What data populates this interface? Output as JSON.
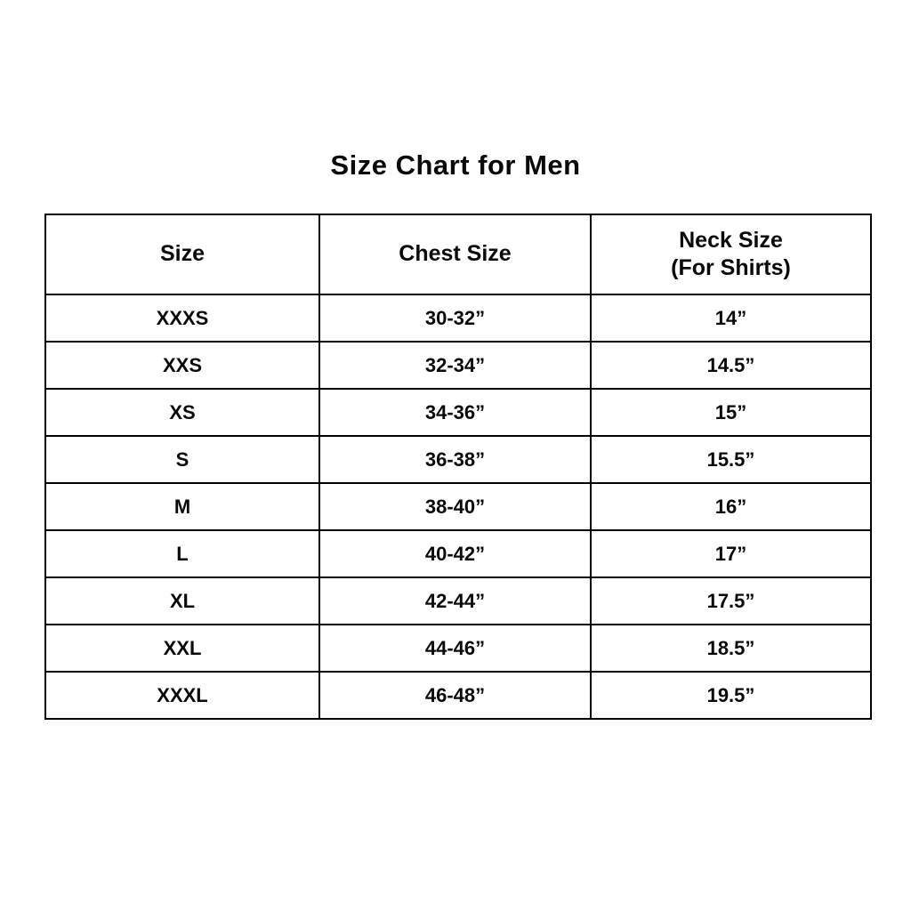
{
  "title": "Size Chart for Men",
  "table": {
    "headers": {
      "size": "Size",
      "chest": "Chest Size",
      "neck_line1": "Neck Size",
      "neck_line2": "(For Shirts)"
    },
    "rows": [
      {
        "size": "XXXS",
        "chest": "30-32”",
        "neck": "14”"
      },
      {
        "size": "XXS",
        "chest": "32-34”",
        "neck": "14.5”"
      },
      {
        "size": "XS",
        "chest": "34-36”",
        "neck": "15”"
      },
      {
        "size": "S",
        "chest": "36-38”",
        "neck": "15.5”"
      },
      {
        "size": "M",
        "chest": "38-40”",
        "neck": "16”"
      },
      {
        "size": "L",
        "chest": "40-42”",
        "neck": "17”"
      },
      {
        "size": "XL",
        "chest": "42-44”",
        "neck": "17.5”"
      },
      {
        "size": "XXL",
        "chest": "44-46”",
        "neck": "18.5”"
      },
      {
        "size": "XXXL",
        "chest": "46-48”",
        "neck": "19.5”"
      }
    ]
  },
  "colors": {
    "text": "#0a0a0a",
    "border": "#000000",
    "background": "#ffffff"
  }
}
